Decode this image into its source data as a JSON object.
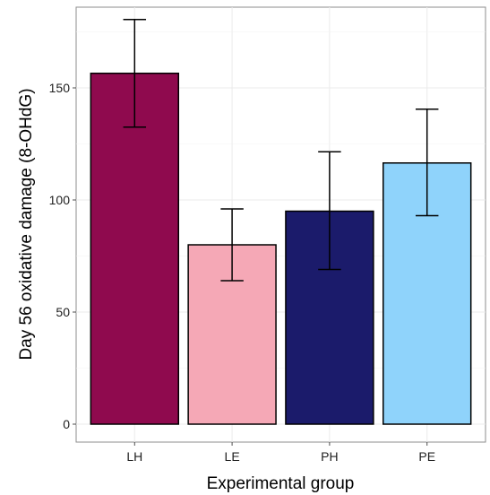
{
  "chart_data": {
    "type": "bar",
    "title": "",
    "xlabel": "Experimental group",
    "ylabel": "Day 56 oxidative damage (8-OHdG)",
    "categories": [
      "LH",
      "LE",
      "PH",
      "PE"
    ],
    "values": [
      156.5,
      80,
      95,
      116.5
    ],
    "error_low": [
      132.5,
      64,
      69,
      93
    ],
    "error_high": [
      180.5,
      96,
      121.5,
      140.5
    ],
    "colors": [
      "#8f0a4e",
      "#f5a8b6",
      "#1b1b6b",
      "#8fd3fb"
    ],
    "ylim": [
      -8,
      186
    ],
    "yticks": [
      0,
      50,
      100,
      150
    ],
    "grid": true,
    "legend": "none"
  }
}
